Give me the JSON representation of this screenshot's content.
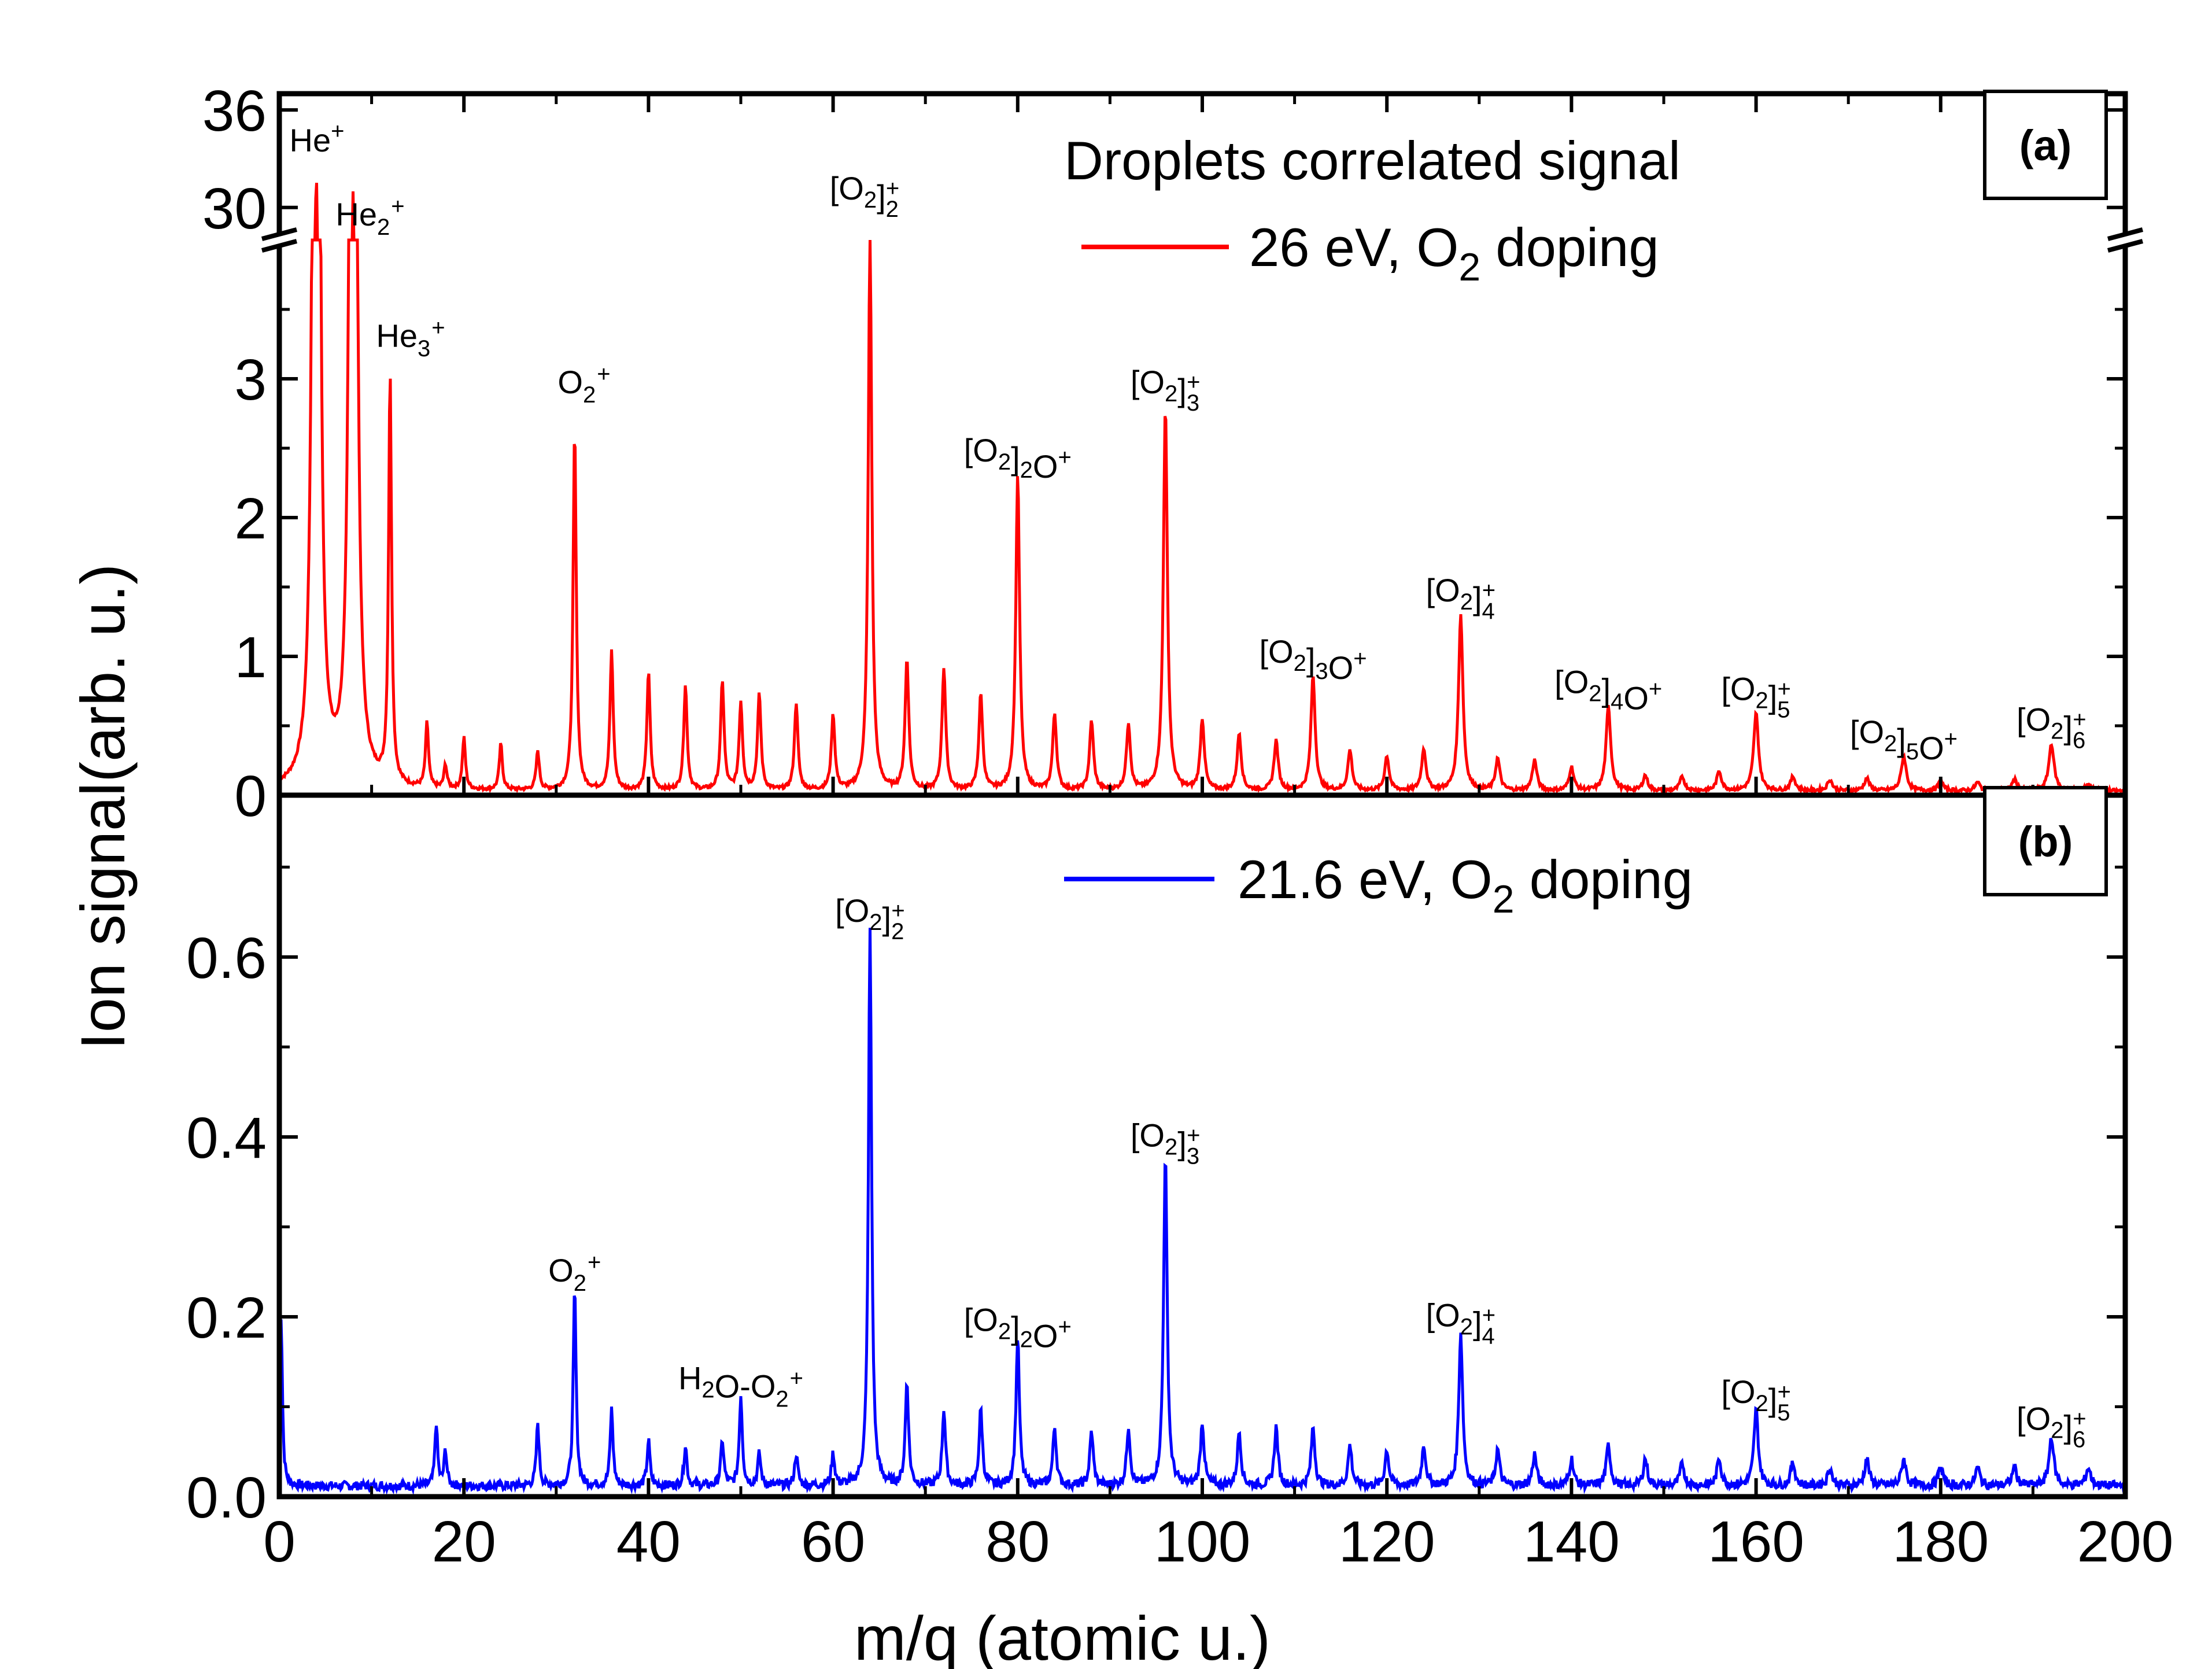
{
  "chart_data": [
    {
      "panel": "(a)",
      "type": "line",
      "title": "Droplets correlated signal",
      "legend": "26 eV, O2 doping",
      "color": "#ff0000",
      "xlabel": "m/q (atomic u.)",
      "ylabel": "Ion signal(arb. u.)",
      "xlim": [
        0,
        200
      ],
      "ylim": [
        0,
        4
      ],
      "y_break": {
        "lower_max": 4,
        "upper_range": [
          28,
          37
        ]
      },
      "yticks": [
        0,
        1,
        2,
        3
      ],
      "upper_yticks": [
        30,
        36
      ],
      "peaks": [
        {
          "mz": 4,
          "y": 33
        },
        {
          "mz": 8,
          "y": 31
        },
        {
          "mz": 12,
          "y": 2.95
        },
        {
          "mz": 16,
          "y": 0.47
        },
        {
          "mz": 18,
          "y": 0.17
        },
        {
          "mz": 20,
          "y": 0.37
        },
        {
          "mz": 24,
          "y": 0.33
        },
        {
          "mz": 28,
          "y": 0.28
        },
        {
          "mz": 32,
          "y": 2.6
        },
        {
          "mz": 36,
          "y": 1.0
        },
        {
          "mz": 40,
          "y": 0.85
        },
        {
          "mz": 44,
          "y": 0.76
        },
        {
          "mz": 48,
          "y": 0.79
        },
        {
          "mz": 50,
          "y": 0.63
        },
        {
          "mz": 52,
          "y": 0.69
        },
        {
          "mz": 56,
          "y": 0.63
        },
        {
          "mz": 60,
          "y": 0.54
        },
        {
          "mz": 64,
          "y": 4.0
        },
        {
          "mz": 68,
          "y": 0.94
        },
        {
          "mz": 72,
          "y": 0.88
        },
        {
          "mz": 76,
          "y": 0.69
        },
        {
          "mz": 80,
          "y": 2.28
        },
        {
          "mz": 84,
          "y": 0.55
        },
        {
          "mz": 88,
          "y": 0.5
        },
        {
          "mz": 92,
          "y": 0.48
        },
        {
          "mz": 96,
          "y": 2.77
        },
        {
          "mz": 100,
          "y": 0.51
        },
        {
          "mz": 104,
          "y": 0.41
        },
        {
          "mz": 108,
          "y": 0.36
        },
        {
          "mz": 112,
          "y": 0.83
        },
        {
          "mz": 116,
          "y": 0.29
        },
        {
          "mz": 120,
          "y": 0.25
        },
        {
          "mz": 124,
          "y": 0.3
        },
        {
          "mz": 128,
          "y": 1.27
        },
        {
          "mz": 132,
          "y": 0.23
        },
        {
          "mz": 136,
          "y": 0.22
        },
        {
          "mz": 140,
          "y": 0.17
        },
        {
          "mz": 144,
          "y": 0.61
        },
        {
          "mz": 148,
          "y": 0.11
        },
        {
          "mz": 152,
          "y": 0.1
        },
        {
          "mz": 156,
          "y": 0.14
        },
        {
          "mz": 160,
          "y": 0.56
        },
        {
          "mz": 164,
          "y": 0.1
        },
        {
          "mz": 168,
          "y": 0.08
        },
        {
          "mz": 172,
          "y": 0.09
        },
        {
          "mz": 176,
          "y": 0.25
        },
        {
          "mz": 180,
          "y": 0.07
        },
        {
          "mz": 184,
          "y": 0.06
        },
        {
          "mz": 188,
          "y": 0.08
        },
        {
          "mz": 192,
          "y": 0.34
        },
        {
          "mz": 196,
          "y": 0.05
        }
      ],
      "annotations": [
        {
          "text": "He",
          "sub": "",
          "sup": "+",
          "mz": 4,
          "y": 33
        },
        {
          "text": "He",
          "sub": "2",
          "sup": "+",
          "mz": 8,
          "y": 31
        },
        {
          "text": "He",
          "sub": "3",
          "sup": "+",
          "mz": 12,
          "y": 2.95
        },
        {
          "text": "O",
          "sub": "2",
          "sup": "+",
          "mz": 32,
          "y": 2.6
        },
        {
          "text": "[O2]",
          "sub": "2",
          "sup": "+",
          "mz": 64,
          "y": 4.0
        },
        {
          "text": "[O2]2O",
          "sub": "",
          "sup": "+",
          "mz": 80,
          "y": 2.28
        },
        {
          "text": "[O2]",
          "sub": "3",
          "sup": "+",
          "mz": 96,
          "y": 2.77
        },
        {
          "text": "[O2]3O",
          "sub": "",
          "sup": "+",
          "mz": 112,
          "y": 0.83
        },
        {
          "text": "[O2]",
          "sub": "4",
          "sup": "+",
          "mz": 128,
          "y": 1.27
        },
        {
          "text": "[O2]4O",
          "sub": "",
          "sup": "+",
          "mz": 144,
          "y": 0.61
        },
        {
          "text": "[O2]",
          "sub": "5",
          "sup": "+",
          "mz": 160,
          "y": 0.56
        },
        {
          "text": "[O2]5O",
          "sub": "",
          "sup": "+",
          "mz": 176,
          "y": 0.25
        },
        {
          "text": "[O2]",
          "sub": "6",
          "sup": "+",
          "mz": 192,
          "y": 0.34
        }
      ]
    },
    {
      "panel": "(b)",
      "type": "line",
      "legend": "21.6 eV, O2 doping",
      "color": "#0000ff",
      "xlabel": "m/q (atomic u.)",
      "ylabel": "Ion signal(arb. u.)",
      "xlim": [
        0,
        200
      ],
      "ylim": [
        0,
        0.78
      ],
      "yticks": [
        0.0,
        0.2,
        0.4,
        0.6
      ],
      "xticks": [
        0,
        20,
        40,
        60,
        80,
        100,
        120,
        140,
        160,
        180,
        200
      ],
      "peaks": [
        {
          "mz": 0.2,
          "y": 0.19
        },
        {
          "mz": 17,
          "y": 0.07
        },
        {
          "mz": 18,
          "y": 0.04
        },
        {
          "mz": 28,
          "y": 0.07
        },
        {
          "mz": 32,
          "y": 0.22
        },
        {
          "mz": 36,
          "y": 0.085
        },
        {
          "mz": 40,
          "y": 0.05
        },
        {
          "mz": 44,
          "y": 0.045
        },
        {
          "mz": 48,
          "y": 0.05
        },
        {
          "mz": 50,
          "y": 0.1
        },
        {
          "mz": 52,
          "y": 0.035
        },
        {
          "mz": 56,
          "y": 0.035
        },
        {
          "mz": 60,
          "y": 0.035
        },
        {
          "mz": 64,
          "y": 0.62
        },
        {
          "mz": 68,
          "y": 0.115
        },
        {
          "mz": 72,
          "y": 0.085
        },
        {
          "mz": 76,
          "y": 0.085
        },
        {
          "mz": 80,
          "y": 0.165
        },
        {
          "mz": 84,
          "y": 0.065
        },
        {
          "mz": 88,
          "y": 0.06
        },
        {
          "mz": 92,
          "y": 0.065
        },
        {
          "mz": 96,
          "y": 0.37
        },
        {
          "mz": 100,
          "y": 0.07
        },
        {
          "mz": 104,
          "y": 0.06
        },
        {
          "mz": 108,
          "y": 0.065
        },
        {
          "mz": 112,
          "y": 0.065
        },
        {
          "mz": 116,
          "y": 0.045
        },
        {
          "mz": 120,
          "y": 0.04
        },
        {
          "mz": 124,
          "y": 0.045
        },
        {
          "mz": 128,
          "y": 0.17
        },
        {
          "mz": 132,
          "y": 0.04
        },
        {
          "mz": 136,
          "y": 0.035
        },
        {
          "mz": 140,
          "y": 0.03
        },
        {
          "mz": 144,
          "y": 0.045
        },
        {
          "mz": 148,
          "y": 0.03
        },
        {
          "mz": 152,
          "y": 0.025
        },
        {
          "mz": 156,
          "y": 0.03
        },
        {
          "mz": 160,
          "y": 0.085
        },
        {
          "mz": 164,
          "y": 0.025
        },
        {
          "mz": 168,
          "y": 0.02
        },
        {
          "mz": 172,
          "y": 0.03
        },
        {
          "mz": 176,
          "y": 0.03
        },
        {
          "mz": 180,
          "y": 0.02
        },
        {
          "mz": 184,
          "y": 0.02
        },
        {
          "mz": 188,
          "y": 0.02
        },
        {
          "mz": 192,
          "y": 0.055
        },
        {
          "mz": 196,
          "y": 0.02
        }
      ],
      "annotations": [
        {
          "text": "O",
          "sub": "2",
          "sup": "+",
          "mz": 32,
          "y": 0.22
        },
        {
          "text": "H2O-O",
          "sub": "2",
          "sup": "+",
          "mz": 50,
          "y": 0.1
        },
        {
          "text": "[O2]",
          "sub": "2",
          "sup": "+",
          "mz": 64,
          "y": 0.62
        },
        {
          "text": "[O2]2O",
          "sub": "",
          "sup": "+",
          "mz": 80,
          "y": 0.165
        },
        {
          "text": "[O2]",
          "sub": "3",
          "sup": "+",
          "mz": 96,
          "y": 0.37
        },
        {
          "text": "[O2]",
          "sub": "4",
          "sup": "+",
          "mz": 128,
          "y": 0.17
        },
        {
          "text": "[O2]",
          "sub": "5",
          "sup": "+",
          "mz": 160,
          "y": 0.085
        },
        {
          "text": "[O2]",
          "sub": "6",
          "sup": "+",
          "mz": 192,
          "y": 0.055
        }
      ]
    }
  ],
  "labels": {
    "title_a": "Droplets correlated signal",
    "legend_a": "26 eV, O",
    "legend_a_sub": "2",
    "legend_a_tail": " doping",
    "legend_b": "21.6 eV, O",
    "legend_b_sub": "2",
    "legend_b_tail": " doping",
    "tag_a": "(a)",
    "tag_b": "(b)",
    "xlabel": "m/q (atomic u.)",
    "ylabel": "Ion signal(arb. u.)"
  }
}
